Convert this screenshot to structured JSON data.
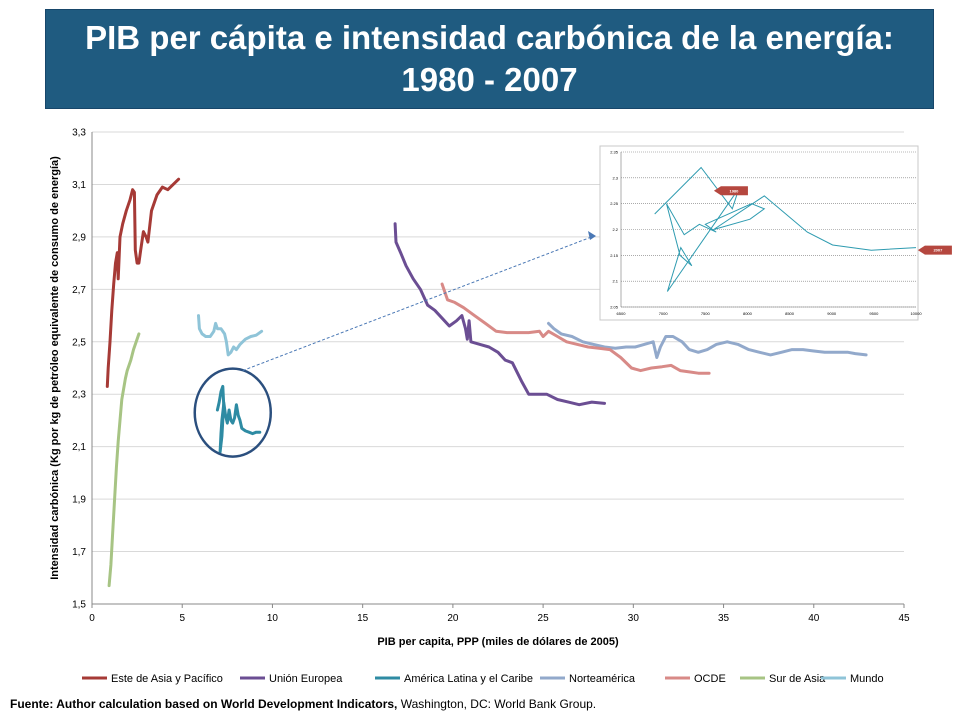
{
  "title": "PIB per cápita e intensidad carbónica de la energía: 1980 - 2007",
  "source": {
    "bold": "Fuente: Author calculation based on World Development Indicators,",
    "normal": " Washington, DC: World Bank Group."
  },
  "chart_data": {
    "type": "line",
    "xlabel": "PIB per capita, PPP (miles de dólares de 2005)",
    "ylabel": "Intensidad carbónica  (Kg por kg de petróleo equivalente de consumo de energía)",
    "xlim": [
      0,
      45
    ],
    "ylim": [
      1.5,
      3.3
    ],
    "x_ticks": [
      "0",
      "5",
      "10",
      "15",
      "20",
      "25",
      "30",
      "35",
      "40",
      "45"
    ],
    "y_ticks": [
      "1,5",
      "1,7",
      "1,9",
      "2,1",
      "2,3",
      "2,5",
      "2,7",
      "2,9",
      "3,1",
      "3,3"
    ],
    "grid": "horizontal",
    "legend": "bottom",
    "series": [
      {
        "name": "Este de Asia y Pacífico",
        "color": "#a63a36",
        "points": [
          [
            0.85,
            2.33
          ],
          [
            0.9,
            2.4
          ],
          [
            1.0,
            2.5
          ],
          [
            1.1,
            2.62
          ],
          [
            1.2,
            2.72
          ],
          [
            1.3,
            2.8
          ],
          [
            1.4,
            2.84
          ],
          [
            1.45,
            2.74
          ],
          [
            1.55,
            2.9
          ],
          [
            1.7,
            2.95
          ],
          [
            1.9,
            3.0
          ],
          [
            2.1,
            3.04
          ],
          [
            2.25,
            3.08
          ],
          [
            2.35,
            3.07
          ],
          [
            2.4,
            2.85
          ],
          [
            2.5,
            2.8
          ],
          [
            2.6,
            2.8
          ],
          [
            2.7,
            2.85
          ],
          [
            2.85,
            2.92
          ],
          [
            3.0,
            2.9
          ],
          [
            3.1,
            2.88
          ],
          [
            3.3,
            3.0
          ],
          [
            3.6,
            3.06
          ],
          [
            3.9,
            3.09
          ],
          [
            4.2,
            3.08
          ],
          [
            4.5,
            3.1
          ],
          [
            4.8,
            3.12
          ]
        ]
      },
      {
        "name": "Unión Europea",
        "color": "#6b4e93",
        "points": [
          [
            16.8,
            2.95
          ],
          [
            16.85,
            2.88
          ],
          [
            17.1,
            2.84
          ],
          [
            17.4,
            2.79
          ],
          [
            17.8,
            2.74
          ],
          [
            18.2,
            2.7
          ],
          [
            18.6,
            2.64
          ],
          [
            19.0,
            2.62
          ],
          [
            19.4,
            2.59
          ],
          [
            19.8,
            2.56
          ],
          [
            20.2,
            2.58
          ],
          [
            20.5,
            2.6
          ],
          [
            20.7,
            2.55
          ],
          [
            20.8,
            2.51
          ],
          [
            20.9,
            2.58
          ],
          [
            21.0,
            2.5
          ],
          [
            21.5,
            2.49
          ],
          [
            22.0,
            2.48
          ],
          [
            22.5,
            2.46
          ],
          [
            22.9,
            2.43
          ],
          [
            23.3,
            2.42
          ],
          [
            23.8,
            2.35
          ],
          [
            24.2,
            2.3
          ],
          [
            24.6,
            2.3
          ],
          [
            25.2,
            2.3
          ],
          [
            25.8,
            2.28
          ],
          [
            26.4,
            2.27
          ],
          [
            27.0,
            2.26
          ],
          [
            27.7,
            2.27
          ],
          [
            28.4,
            2.265
          ]
        ]
      },
      {
        "name": "América Latina y el Caribe",
        "color": "#2e8ba3",
        "points": [
          [
            6.95,
            2.24
          ],
          [
            7.05,
            2.27
          ],
          [
            7.15,
            2.31
          ],
          [
            7.25,
            2.33
          ],
          [
            7.3,
            2.26
          ],
          [
            7.2,
            2.2
          ],
          [
            7.15,
            2.15
          ],
          [
            7.1,
            2.08
          ],
          [
            7.2,
            2.14
          ],
          [
            7.25,
            2.2
          ],
          [
            7.3,
            2.27
          ],
          [
            7.4,
            2.22
          ],
          [
            7.5,
            2.19
          ],
          [
            7.6,
            2.24
          ],
          [
            7.7,
            2.2
          ],
          [
            7.8,
            2.19
          ],
          [
            7.9,
            2.21
          ],
          [
            8.0,
            2.26
          ],
          [
            8.1,
            2.22
          ],
          [
            8.2,
            2.2
          ],
          [
            8.3,
            2.17
          ],
          [
            8.5,
            2.16
          ],
          [
            8.7,
            2.155
          ],
          [
            8.9,
            2.15
          ],
          [
            9.1,
            2.155
          ],
          [
            9.3,
            2.155
          ]
        ]
      },
      {
        "name": "Norteamérica",
        "color": "#92a9cb",
        "points": [
          [
            25.3,
            2.57
          ],
          [
            25.6,
            2.55
          ],
          [
            26.0,
            2.53
          ],
          [
            26.6,
            2.52
          ],
          [
            27.2,
            2.5
          ],
          [
            27.8,
            2.49
          ],
          [
            28.4,
            2.48
          ],
          [
            29.0,
            2.475
          ],
          [
            29.6,
            2.48
          ],
          [
            30.1,
            2.48
          ],
          [
            30.6,
            2.49
          ],
          [
            31.1,
            2.5
          ],
          [
            31.3,
            2.44
          ],
          [
            31.5,
            2.48
          ],
          [
            31.8,
            2.52
          ],
          [
            32.2,
            2.52
          ],
          [
            32.7,
            2.5
          ],
          [
            33.1,
            2.47
          ],
          [
            33.6,
            2.46
          ],
          [
            34.1,
            2.47
          ],
          [
            34.6,
            2.49
          ],
          [
            35.2,
            2.5
          ],
          [
            35.8,
            2.49
          ],
          [
            36.4,
            2.47
          ],
          [
            37.0,
            2.46
          ],
          [
            37.6,
            2.45
          ],
          [
            38.2,
            2.46
          ],
          [
            38.8,
            2.47
          ],
          [
            39.4,
            2.47
          ],
          [
            40.0,
            2.465
          ],
          [
            40.6,
            2.46
          ],
          [
            41.3,
            2.46
          ],
          [
            41.9,
            2.46
          ],
          [
            42.3,
            2.455
          ],
          [
            42.9,
            2.45
          ]
        ]
      },
      {
        "name": "OCDE",
        "color": "#d88a87",
        "points": [
          [
            19.4,
            2.72
          ],
          [
            19.7,
            2.66
          ],
          [
            20.1,
            2.65
          ],
          [
            20.6,
            2.63
          ],
          [
            21.2,
            2.6
          ],
          [
            21.8,
            2.57
          ],
          [
            22.4,
            2.54
          ],
          [
            23.0,
            2.535
          ],
          [
            23.6,
            2.535
          ],
          [
            24.2,
            2.535
          ],
          [
            24.8,
            2.54
          ],
          [
            25.0,
            2.52
          ],
          [
            25.3,
            2.54
          ],
          [
            25.8,
            2.52
          ],
          [
            26.3,
            2.5
          ],
          [
            26.9,
            2.49
          ],
          [
            27.5,
            2.48
          ],
          [
            28.1,
            2.475
          ],
          [
            28.7,
            2.47
          ],
          [
            29.3,
            2.44
          ],
          [
            29.9,
            2.4
          ],
          [
            30.4,
            2.39
          ],
          [
            31.0,
            2.4
          ],
          [
            31.6,
            2.405
          ],
          [
            32.1,
            2.41
          ],
          [
            32.6,
            2.39
          ],
          [
            33.1,
            2.385
          ],
          [
            33.6,
            2.38
          ],
          [
            34.2,
            2.38
          ]
        ]
      },
      {
        "name": "Sur de Asia",
        "color": "#a7c484",
        "points": [
          [
            0.95,
            1.57
          ],
          [
            1.05,
            1.65
          ],
          [
            1.15,
            1.78
          ],
          [
            1.25,
            1.9
          ],
          [
            1.35,
            2.02
          ],
          [
            1.45,
            2.12
          ],
          [
            1.55,
            2.2
          ],
          [
            1.65,
            2.28
          ],
          [
            1.75,
            2.32
          ],
          [
            1.85,
            2.36
          ],
          [
            1.95,
            2.39
          ],
          [
            2.05,
            2.41
          ],
          [
            2.15,
            2.43
          ],
          [
            2.3,
            2.47
          ],
          [
            2.45,
            2.5
          ],
          [
            2.6,
            2.53
          ]
        ]
      },
      {
        "name": "Mundo",
        "color": "#8fc4d8",
        "points": [
          [
            5.9,
            2.6
          ],
          [
            5.95,
            2.55
          ],
          [
            6.1,
            2.53
          ],
          [
            6.3,
            2.52
          ],
          [
            6.55,
            2.52
          ],
          [
            6.75,
            2.54
          ],
          [
            6.85,
            2.57
          ],
          [
            6.95,
            2.55
          ],
          [
            7.15,
            2.55
          ],
          [
            7.35,
            2.53
          ],
          [
            7.45,
            2.5
          ],
          [
            7.55,
            2.45
          ],
          [
            7.7,
            2.46
          ],
          [
            7.85,
            2.48
          ],
          [
            8.0,
            2.47
          ],
          [
            8.2,
            2.49
          ],
          [
            8.5,
            2.51
          ],
          [
            8.8,
            2.52
          ],
          [
            9.1,
            2.525
          ],
          [
            9.4,
            2.54
          ]
        ]
      }
    ],
    "annotation": {
      "shape": "ellipse",
      "center": [
        7.8,
        2.23
      ],
      "target": "inset"
    },
    "inset": {
      "x_ticks": [
        "6500",
        "7000",
        "7500",
        "8000",
        "8500",
        "9000",
        "9500",
        "10000"
      ],
      "y_ticks": [
        "2.05",
        "2.1",
        "2.15",
        "2.2",
        "2.25",
        "2.3",
        "2.35"
      ],
      "xlim": [
        6500,
        10000
      ],
      "ylim": [
        2.05,
        2.35
      ],
      "line_color": "#2e9bb0",
      "points": [
        [
          6900,
          2.23
        ],
        [
          7450,
          2.32
        ],
        [
          7820,
          2.24
        ],
        [
          7900,
          2.28
        ],
        [
          7050,
          2.08
        ],
        [
          7210,
          2.165
        ],
        [
          7340,
          2.13
        ],
        [
          7200,
          2.15
        ],
        [
          7040,
          2.25
        ],
        [
          7250,
          2.19
        ],
        [
          7430,
          2.21
        ],
        [
          7630,
          2.195
        ],
        [
          7500,
          2.21
        ],
        [
          8050,
          2.25
        ],
        [
          8200,
          2.24
        ],
        [
          8030,
          2.22
        ],
        [
          7600,
          2.2
        ],
        [
          8200,
          2.265
        ],
        [
          8710,
          2.195
        ],
        [
          9010,
          2.17
        ],
        [
          9470,
          2.16
        ],
        [
          10000,
          2.165
        ]
      ],
      "tags": [
        {
          "label": "1980",
          "x": 7650,
          "y": 2.275
        },
        {
          "label": "2007",
          "x": 10070,
          "y": 2.16
        }
      ]
    }
  }
}
